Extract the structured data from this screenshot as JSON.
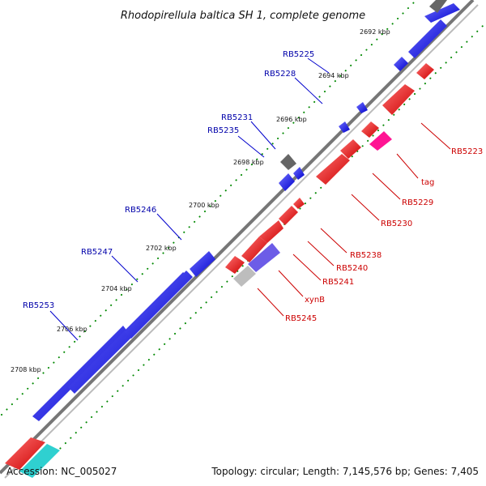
{
  "title": "Rhodopirellula baltica SH 1, complete genome",
  "footer": {
    "accession": "Accession: NC_005027",
    "summary": "Topology: circular; Length: 7,145,576 bp; Genes: 7,405"
  },
  "colors": {
    "forward_gene": "#0000ee",
    "reverse_gene": "#ee0000",
    "backbone": "#888888",
    "tick": "#008800",
    "forward_label": "#0000aa",
    "reverse_label": "#cc0000"
  },
  "ticks": [
    "2692 kbp",
    "2694 kbp",
    "2696 kbp",
    "2698 kbp",
    "2700 kbp",
    "2702 kbp",
    "2704 kbp",
    "2706 kbp",
    "2708 kbp"
  ],
  "forward_labels": [
    "RB5225",
    "RB5228",
    "RB5231",
    "RB5235",
    "RB5246",
    "RB5247",
    "RB5253"
  ],
  "reverse_labels": [
    "RB5223",
    "tag",
    "RB5229",
    "RB5230",
    "RB5238",
    "RB5240",
    "RB5241",
    "xynB",
    "RB5245"
  ]
}
